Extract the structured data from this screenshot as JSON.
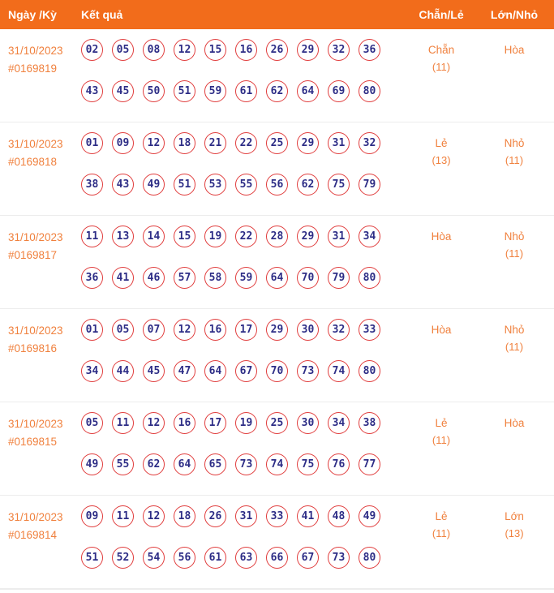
{
  "header": {
    "date_col": "Ngày /Kỳ",
    "result_col": "Kết quả",
    "chanle_col": "Chẵn/Lẻ",
    "lonnho_col": "Lớn/Nhỏ"
  },
  "colors": {
    "header_bg": "#f26c1b",
    "accent_orange": "#f0813e",
    "ball_border": "#e03c3c",
    "number_navy": "#2d2d86"
  },
  "rows": [
    {
      "date": "31/10/2023",
      "period": "#0169819",
      "numbers_line1": [
        "02",
        "05",
        "08",
        "12",
        "15",
        "16",
        "26",
        "29",
        "32",
        "36"
      ],
      "numbers_line2": [
        "43",
        "45",
        "50",
        "51",
        "59",
        "61",
        "62",
        "64",
        "69",
        "80"
      ],
      "chanle": "Chẵn",
      "chanle_count": "(11)",
      "lonnho": "Hòa",
      "lonnho_count": ""
    },
    {
      "date": "31/10/2023",
      "period": "#0169818",
      "numbers_line1": [
        "01",
        "09",
        "12",
        "18",
        "21",
        "22",
        "25",
        "29",
        "31",
        "32"
      ],
      "numbers_line2": [
        "38",
        "43",
        "49",
        "51",
        "53",
        "55",
        "56",
        "62",
        "75",
        "79"
      ],
      "chanle": "Lẻ",
      "chanle_count": "(13)",
      "lonnho": "Nhỏ",
      "lonnho_count": "(11)"
    },
    {
      "date": "31/10/2023",
      "period": "#0169817",
      "numbers_line1": [
        "11",
        "13",
        "14",
        "15",
        "19",
        "22",
        "28",
        "29",
        "31",
        "34"
      ],
      "numbers_line2": [
        "36",
        "41",
        "46",
        "57",
        "58",
        "59",
        "64",
        "70",
        "79",
        "80"
      ],
      "chanle": "Hòa",
      "chanle_count": "",
      "lonnho": "Nhỏ",
      "lonnho_count": "(11)"
    },
    {
      "date": "31/10/2023",
      "period": "#0169816",
      "numbers_line1": [
        "01",
        "05",
        "07",
        "12",
        "16",
        "17",
        "29",
        "30",
        "32",
        "33"
      ],
      "numbers_line2": [
        "34",
        "44",
        "45",
        "47",
        "64",
        "67",
        "70",
        "73",
        "74",
        "80"
      ],
      "chanle": "Hòa",
      "chanle_count": "",
      "lonnho": "Nhỏ",
      "lonnho_count": "(11)"
    },
    {
      "date": "31/10/2023",
      "period": "#0169815",
      "numbers_line1": [
        "05",
        "11",
        "12",
        "16",
        "17",
        "19",
        "25",
        "30",
        "34",
        "38"
      ],
      "numbers_line2": [
        "49",
        "55",
        "62",
        "64",
        "65",
        "73",
        "74",
        "75",
        "76",
        "77"
      ],
      "chanle": "Lẻ",
      "chanle_count": "(11)",
      "lonnho": "Hòa",
      "lonnho_count": ""
    },
    {
      "date": "31/10/2023",
      "period": "#0169814",
      "numbers_line1": [
        "09",
        "11",
        "12",
        "18",
        "26",
        "31",
        "33",
        "41",
        "48",
        "49"
      ],
      "numbers_line2": [
        "51",
        "52",
        "54",
        "56",
        "61",
        "63",
        "66",
        "67",
        "73",
        "80"
      ],
      "chanle": "Lẻ",
      "chanle_count": "(11)",
      "lonnho": "Lớn",
      "lonnho_count": "(13)"
    }
  ]
}
